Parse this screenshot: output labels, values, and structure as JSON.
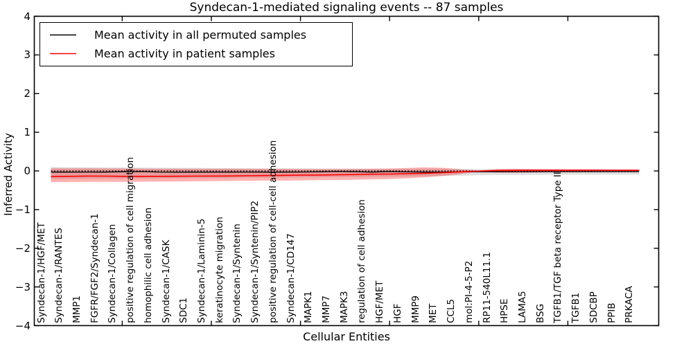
{
  "title": "Syndecan-1-mediated signaling events -- 87 samples",
  "axes": {
    "x_label": "Cellular Entities",
    "y_label": "Inferred Activity",
    "y_tick_labels": [
      "4",
      "3",
      "2",
      "1",
      "0",
      "−1",
      "−2",
      "−3",
      "−4"
    ],
    "y_tick_values": [
      4,
      3,
      2,
      1,
      0,
      -1,
      -2,
      -3,
      -4
    ]
  },
  "legend": {
    "entries": [
      {
        "label": "Mean activity in all permuted samples",
        "color": "#000000"
      },
      {
        "label": "Mean activity in patient samples",
        "color": "#ff0000"
      }
    ]
  },
  "chart_data": {
    "type": "line",
    "title": "Syndecan-1-mediated signaling events -- 87 samples",
    "xlabel": "Cellular Entities",
    "ylabel": "Inferred Activity",
    "ylim": [
      -4,
      4
    ],
    "grid": false,
    "legend_position": "upper left",
    "zero_reference_line": 0,
    "categories": [
      "Syndecan-1/HGF/MET",
      "Syndecan-1/RANTES",
      "MMP1",
      "FGFR/FGF2/Syndecan-1",
      "Syndecan-1/Collagen",
      "positive regulation of cell migration",
      "homophilic cell adhesion",
      "Syndecan-1/CASK",
      "SDC1",
      "Syndecan-1/Laminin-5",
      "keratinocyte migration",
      "Syndecan-1/Syntenin",
      "Syndecan-1/Syntenin/PIP2",
      "positive regulation of cell-cell adhesion",
      "Syndecan-1/CD147",
      "MAPK1",
      "MMP7",
      "MAPK3",
      "regulation of cell adhesion",
      "HGF/MET",
      "HGF",
      "MMP9",
      "MET",
      "CCL5",
      "mol:PI-4-5-P2",
      "RP11-540L11.1",
      "HPSE",
      "LAMA5",
      "BSG",
      "TGFB1/TGF beta receptor Type II",
      "TGFB1",
      "SDCBP",
      "PPIB",
      "PRKACA"
    ],
    "series": [
      {
        "name": "Mean activity in all permuted samples",
        "color": "#000000",
        "values": [
          -0.03,
          -0.03,
          -0.028,
          -0.03,
          -0.022,
          -0.015,
          -0.028,
          -0.032,
          -0.03,
          -0.03,
          -0.03,
          -0.028,
          -0.03,
          -0.03,
          -0.028,
          -0.025,
          -0.012,
          -0.02,
          -0.03,
          -0.015,
          -0.025,
          -0.03,
          -0.028,
          -0.025,
          -0.022,
          -0.022,
          -0.02,
          -0.02,
          -0.018,
          -0.018,
          -0.018,
          -0.018,
          -0.018,
          -0.018
        ]
      },
      {
        "name": "Mean activity in patient samples",
        "color": "#ff0000",
        "values": [
          -0.145,
          -0.14,
          -0.132,
          -0.135,
          -0.14,
          -0.142,
          -0.14,
          -0.138,
          -0.135,
          -0.132,
          -0.13,
          -0.125,
          -0.12,
          -0.115,
          -0.11,
          -0.105,
          -0.1,
          -0.095,
          -0.085,
          -0.08,
          -0.07,
          -0.06,
          -0.045,
          -0.025,
          -0.005,
          0.008,
          0.012,
          0.014,
          0.015,
          0.015,
          0.016,
          0.016,
          0.015,
          0.015
        ]
      }
    ],
    "bands": [
      {
        "name": "permuted samples range",
        "color": "#000000",
        "opacity": 0.13,
        "upper": [
          0.1,
          0.098,
          0.095,
          0.092,
          0.09,
          0.086,
          0.082,
          0.08,
          0.078,
          0.075,
          0.072,
          0.07,
          0.068,
          0.066,
          0.064,
          0.062,
          0.06,
          0.06,
          0.058,
          0.057,
          0.056,
          0.058,
          0.06,
          0.056,
          0.05,
          0.05,
          0.05,
          0.048,
          0.047,
          0.046,
          0.045,
          0.044,
          0.043,
          0.042
        ],
        "lower": [
          -0.21,
          -0.208,
          -0.205,
          -0.203,
          -0.2,
          -0.197,
          -0.193,
          -0.19,
          -0.188,
          -0.185,
          -0.182,
          -0.178,
          -0.174,
          -0.17,
          -0.167,
          -0.163,
          -0.16,
          -0.156,
          -0.152,
          -0.148,
          -0.144,
          -0.138,
          -0.13,
          -0.12,
          -0.11,
          -0.105,
          -0.103,
          -0.1,
          -0.098,
          -0.097,
          -0.096,
          -0.095,
          -0.094,
          -0.093
        ]
      },
      {
        "name": "patient samples range",
        "color": "#ff0000",
        "opacity": 0.3,
        "upper": [
          0.066,
          0.066,
          0.068,
          0.065,
          0.062,
          0.06,
          0.058,
          0.058,
          0.056,
          0.055,
          0.055,
          0.053,
          0.052,
          0.054,
          0.05,
          0.048,
          0.05,
          0.052,
          0.055,
          0.06,
          0.075,
          0.095,
          0.08,
          0.04,
          0.004,
          0.05,
          0.056,
          0.05,
          0.046,
          0.043,
          0.04,
          0.038,
          0.037,
          0.036
        ],
        "lower": [
          -0.29,
          -0.286,
          -0.282,
          -0.282,
          -0.284,
          -0.28,
          -0.276,
          -0.272,
          -0.268,
          -0.264,
          -0.26,
          -0.255,
          -0.25,
          -0.25,
          -0.245,
          -0.24,
          -0.234,
          -0.228,
          -0.22,
          -0.21,
          -0.19,
          -0.165,
          -0.13,
          -0.08,
          -0.012,
          -0.042,
          -0.046,
          -0.042,
          -0.036,
          -0.032,
          -0.03,
          -0.028,
          -0.026,
          -0.025
        ]
      }
    ],
    "x_major_tick_indices": [
      4,
      9,
      14,
      19,
      24,
      29
    ]
  }
}
